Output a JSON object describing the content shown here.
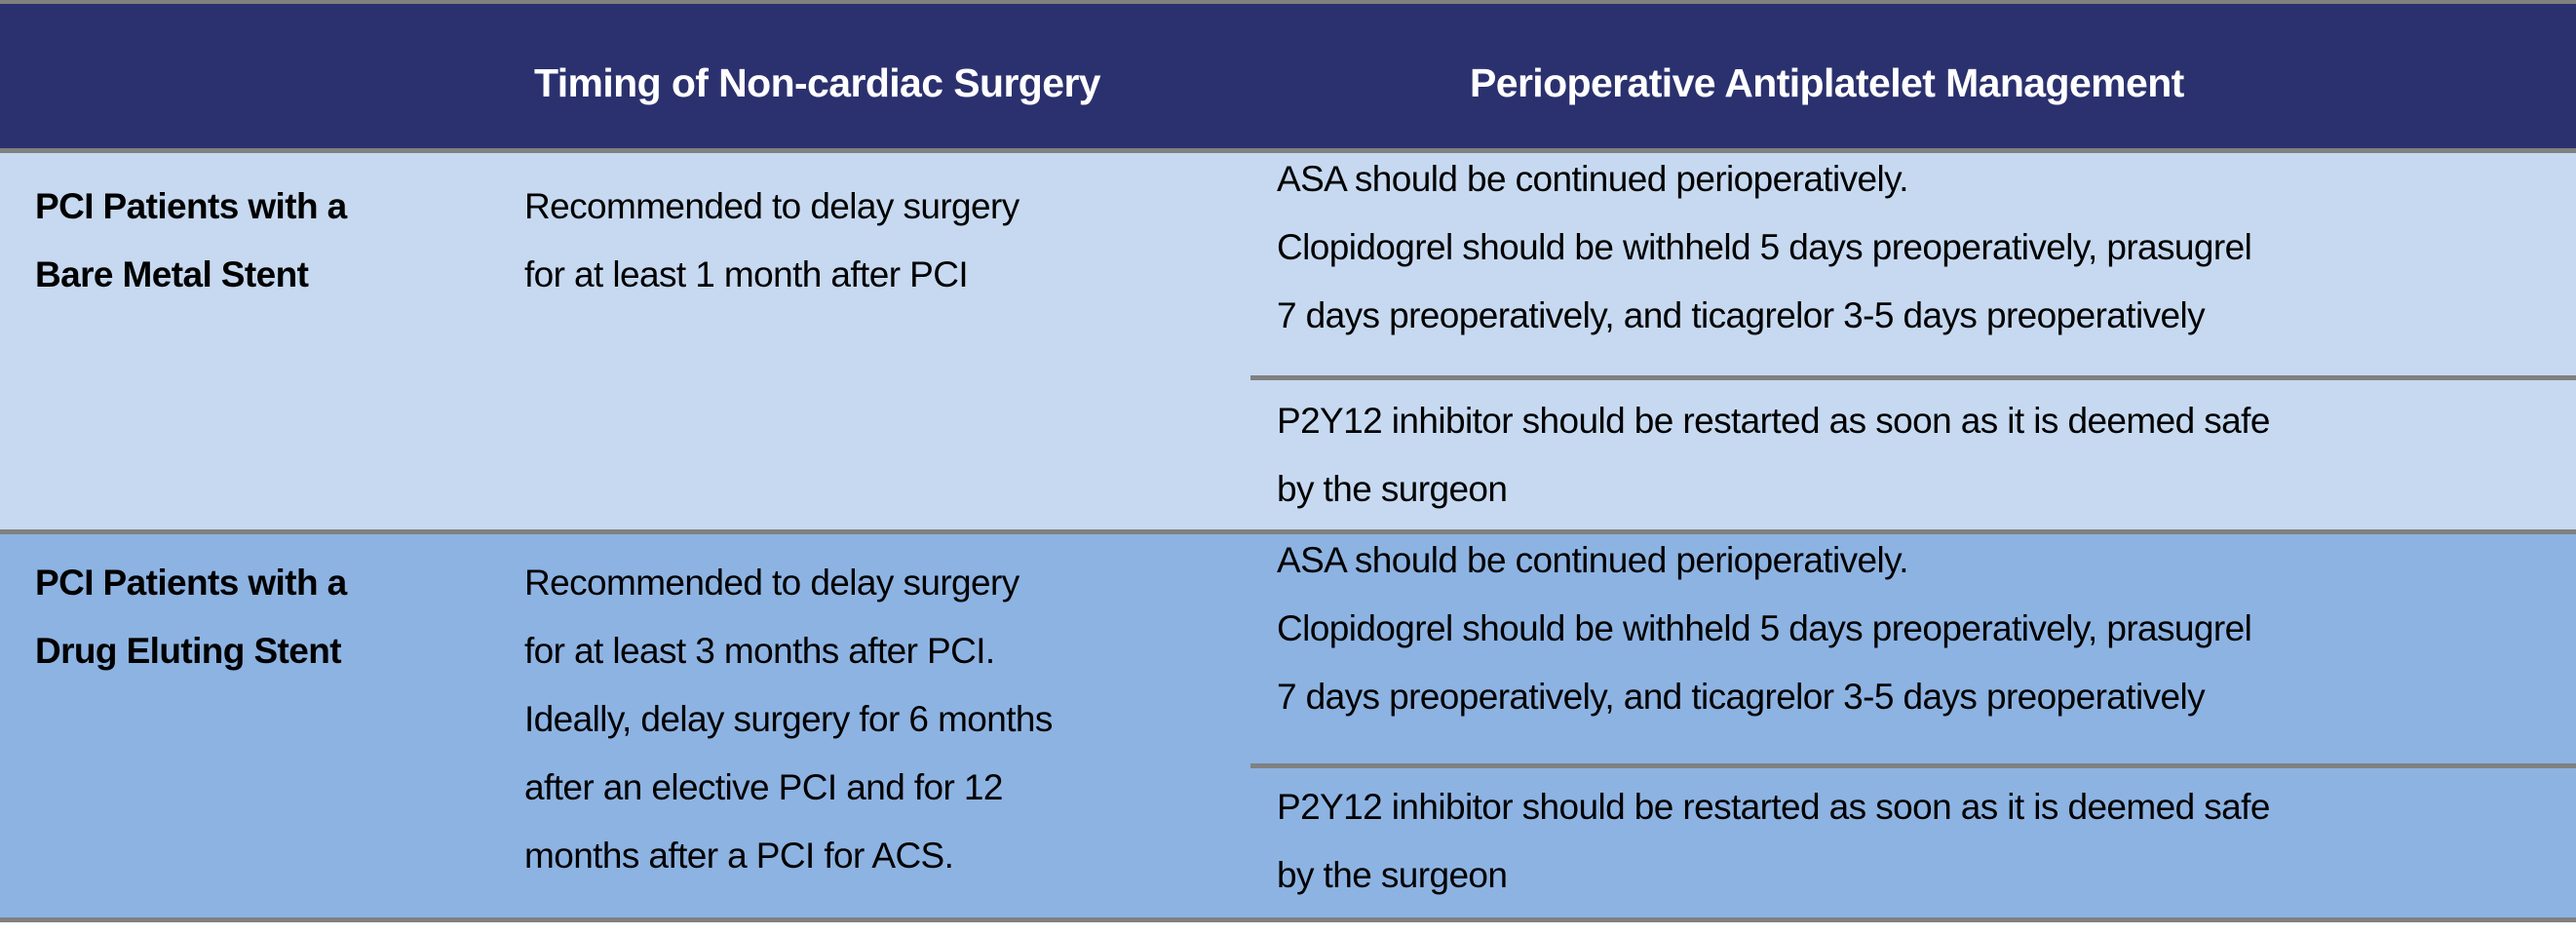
{
  "colors": {
    "header_bg": "#2b316e",
    "row1_bg": "#c6d9f0",
    "row2_bg": "#8db3e2",
    "border": "#808080"
  },
  "header": {
    "col1": "",
    "col2": "Timing of Non-cardiac Surgery",
    "col3": "Perioperative Antiplatelet Management"
  },
  "rows": [
    {
      "label": [
        "PCI Patients with a",
        "Bare Metal Stent"
      ],
      "timing": [
        "Recommended to delay surgery",
        "for at least 1 month after PCI"
      ],
      "management_a": [
        "ASA should be continued perioperatively.",
        "Clopidogrel should be withheld 5 days preoperatively, prasugrel",
        "7 days preoperatively, and ticagrelor 3-5 days preoperatively"
      ],
      "management_b": [
        "P2Y12 inhibitor should be restarted as soon as it is deemed safe",
        "by the surgeon"
      ]
    },
    {
      "label": [
        "PCI Patients with a",
        "Drug Eluting Stent"
      ],
      "timing": [
        "Recommended to delay surgery",
        "for at least 3 months after PCI.",
        "Ideally, delay surgery for 6 months",
        "after an elective PCI and for 12",
        "months after a PCI for ACS."
      ],
      "management_a": [
        "ASA should be continued perioperatively.",
        "Clopidogrel should be withheld 5 days preoperatively, prasugrel",
        "7 days preoperatively, and ticagrelor 3-5 days preoperatively"
      ],
      "management_b": [
        "P2Y12 inhibitor should be restarted as soon as it is deemed safe",
        "by the surgeon"
      ]
    }
  ]
}
